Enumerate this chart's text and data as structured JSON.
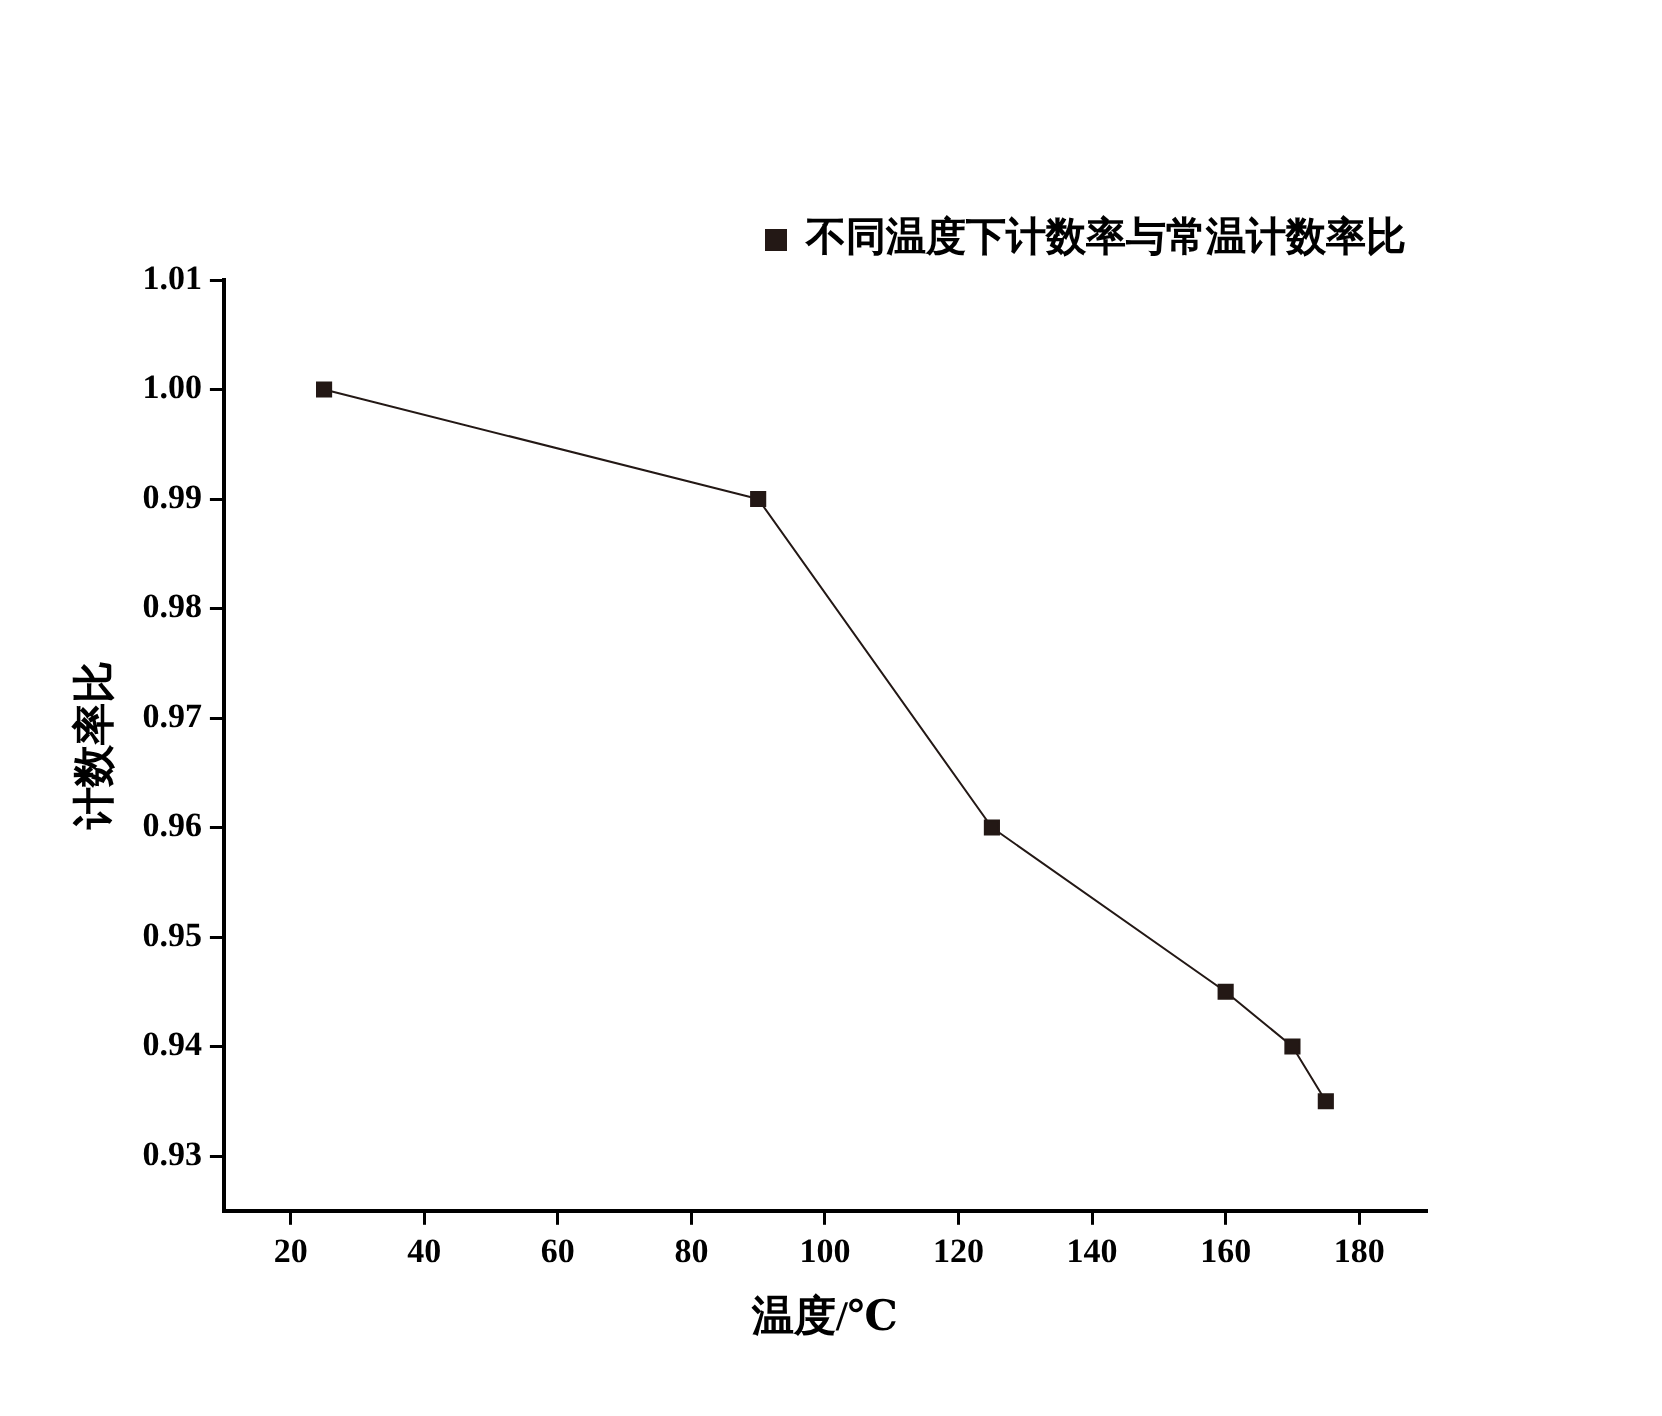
{
  "chart_data": {
    "type": "line",
    "xlabel": "温度/℃",
    "ylabel": "计数率比",
    "x": [
      25,
      90,
      125,
      160,
      170,
      175
    ],
    "series": [
      {
        "name": "不同温度下计数率与常温计数率比",
        "color": "#231815",
        "values": [
          1.0,
          0.99,
          0.96,
          0.945,
          0.94,
          0.935
        ]
      }
    ],
    "xlim": [
      10,
      190
    ],
    "xticks": [
      20,
      40,
      60,
      80,
      100,
      120,
      140,
      160,
      180
    ],
    "ylim": [
      0.925,
      1.01
    ],
    "yticks": [
      0.93,
      0.94,
      0.95,
      0.96,
      0.97,
      0.98,
      0.99,
      {
        "value": 1.0,
        "label": "1.00"
      },
      1.01
    ],
    "grid": false,
    "legend": "top right",
    "marker": "square",
    "line_style": "solid"
  }
}
